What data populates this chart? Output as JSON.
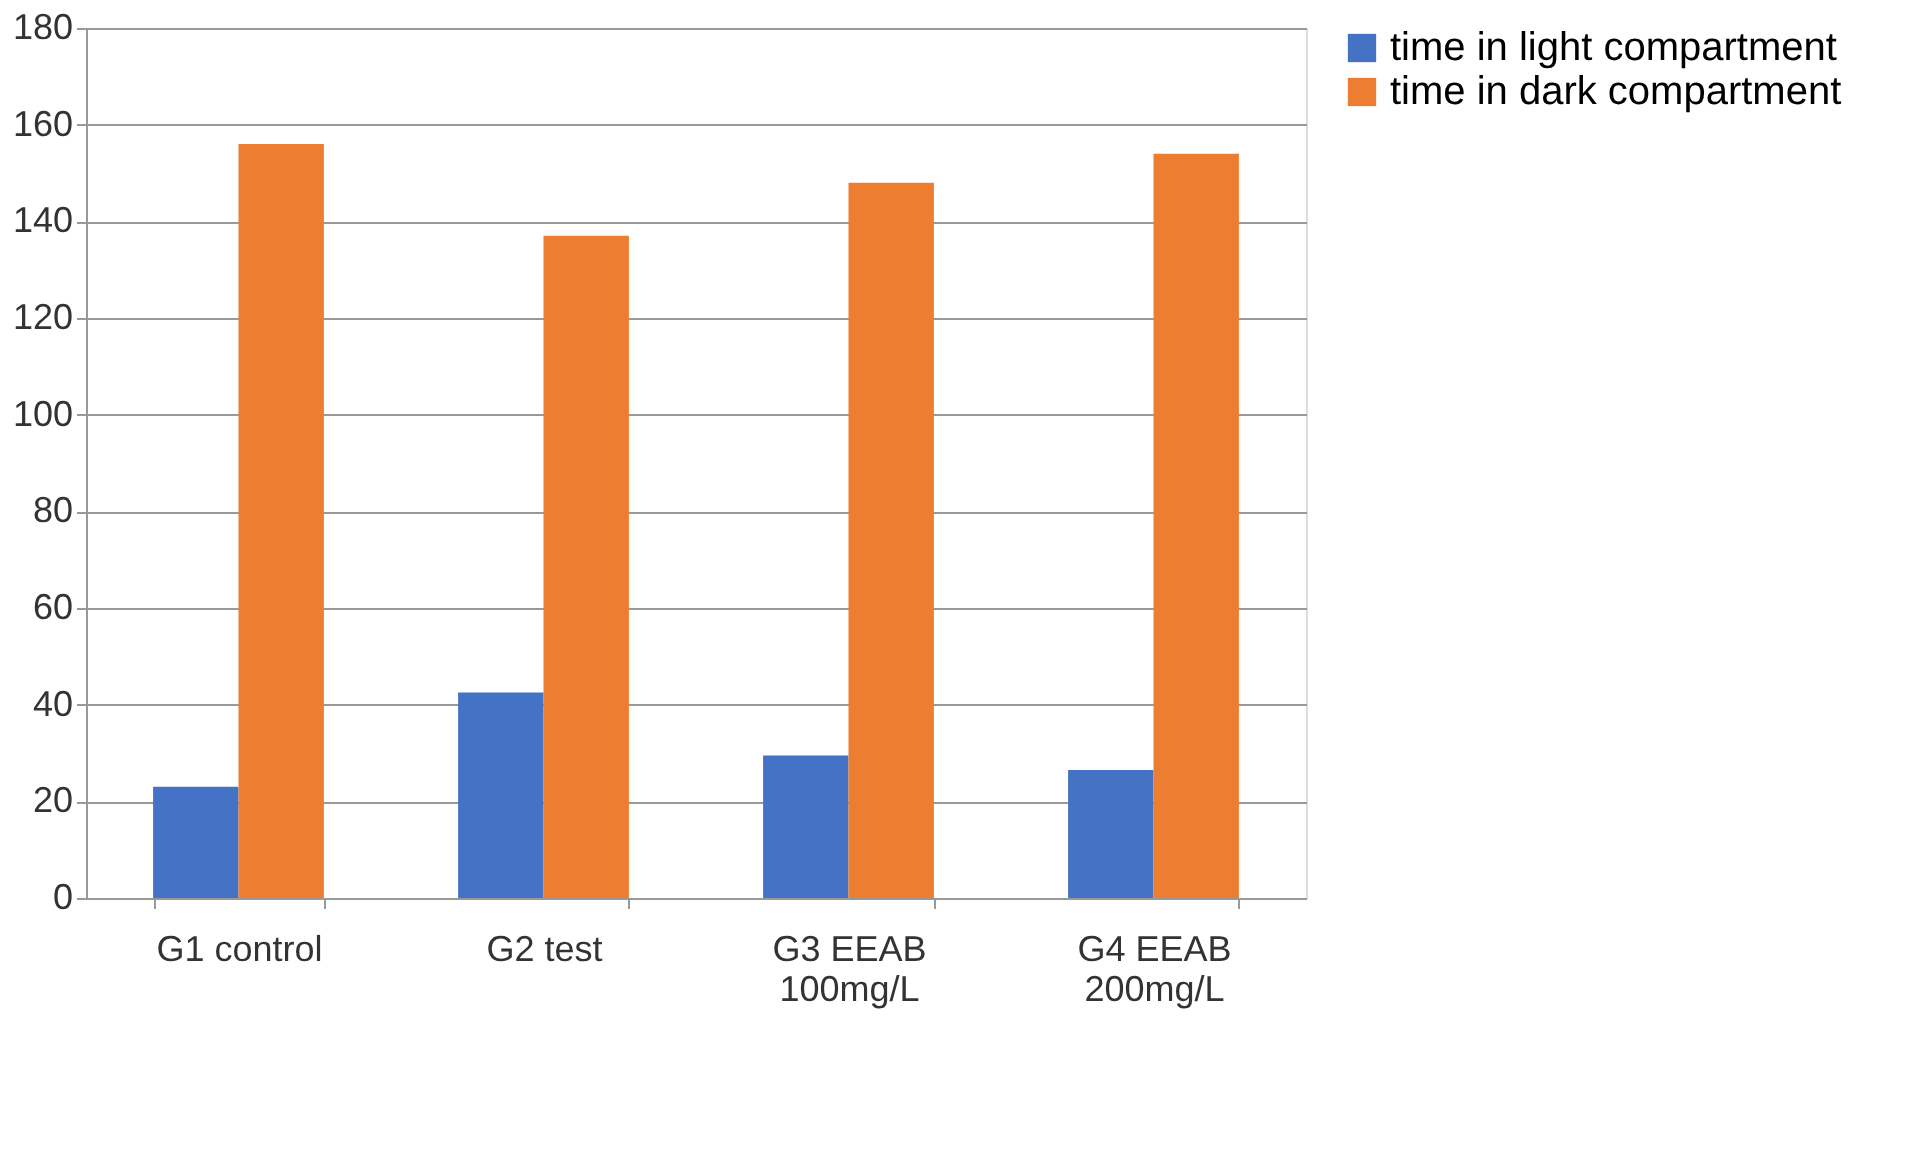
{
  "chart_data": {
    "type": "bar",
    "categories": [
      "G1 control",
      "G2 test",
      "G3 EEAB 100mg/L",
      "G4 EEAB 200mg/L"
    ],
    "series": [
      {
        "name": "time in light compartment",
        "color": "#4472c4",
        "values": [
          23,
          42.5,
          29.5,
          26.5
        ]
      },
      {
        "name": "time in dark compartment",
        "color": "#ed7d31",
        "values": [
          156,
          137,
          148,
          154
        ]
      }
    ],
    "ylim": [
      0,
      180
    ],
    "yticks": [
      0,
      20,
      40,
      60,
      80,
      100,
      120,
      140,
      160,
      180
    ],
    "grid": "y",
    "legend": "right"
  }
}
